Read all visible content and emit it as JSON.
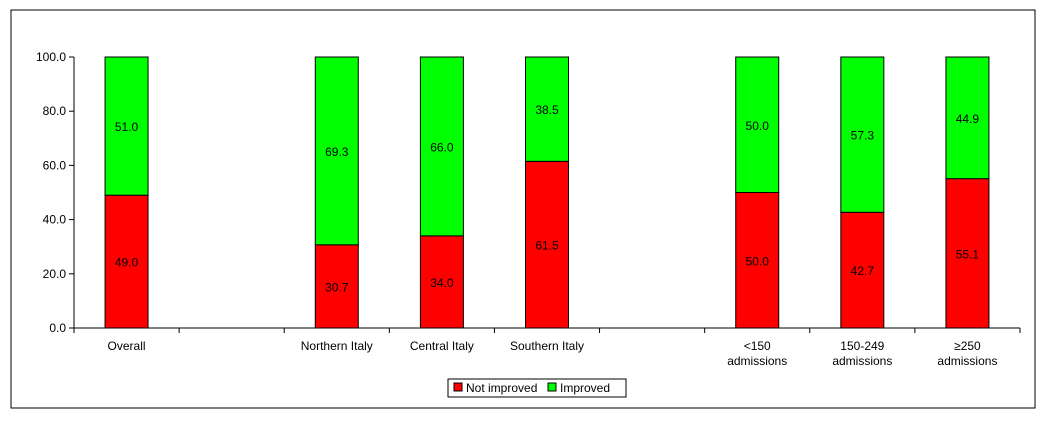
{
  "chart_data": {
    "type": "bar",
    "stacked": true,
    "categories": [
      "Overall",
      "",
      "Northern Italy",
      "Central Italy",
      "Southern Italy",
      "",
      "<150\nadmissions",
      "150-249\nadmissions",
      "≥250\nadmissions"
    ],
    "series": [
      {
        "name": "Not improved",
        "color": "#ff0000",
        "values": [
          49.0,
          null,
          30.7,
          34.0,
          61.5,
          null,
          50.0,
          42.7,
          55.1
        ],
        "labels": [
          "49.0",
          "",
          "30.7",
          "34.0",
          "61.5",
          "",
          "50.0",
          "42.7",
          "55.1"
        ]
      },
      {
        "name": "Improved",
        "color": "#00ff00",
        "values": [
          51.0,
          null,
          69.3,
          66.0,
          38.5,
          null,
          50.0,
          57.3,
          44.9
        ],
        "labels": [
          "51.0",
          "",
          "69.3",
          "66.0",
          "38.5",
          "",
          "50.0",
          "57.3",
          "44.9"
        ]
      }
    ],
    "ylim": [
      0,
      100
    ],
    "yticks": [
      "0.0",
      "20.0",
      "40.0",
      "60.0",
      "80.0",
      "100.0"
    ],
    "ytick_values": [
      0,
      20,
      40,
      60,
      80,
      100
    ],
    "grid": false,
    "legend": "bottom-center"
  }
}
